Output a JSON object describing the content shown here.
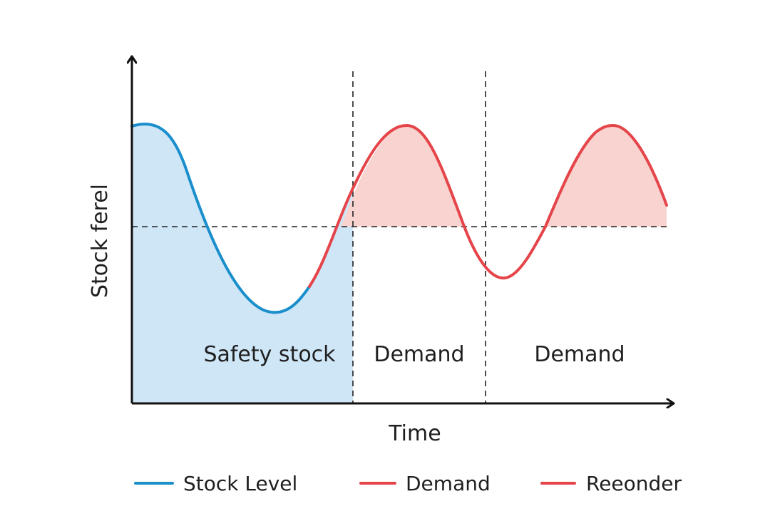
{
  "diagram": {
    "axes": {
      "x_label": "Time",
      "y_label": "Stock ferel"
    },
    "regions": [
      {
        "label": "Safety stock"
      },
      {
        "label": "Demand"
      },
      {
        "label": "Demand"
      }
    ],
    "legend": [
      {
        "label": "Stock Level",
        "color": "#1a8fcc"
      },
      {
        "label": "Demand",
        "color": "#e5454a"
      },
      {
        "label": "Reeonder",
        "color": "#e5454a"
      }
    ],
    "colors": {
      "stock_line": "#1a8fcc",
      "stock_fill": "#cfe6f7",
      "demand_line": "#e5454a",
      "demand_fill": "#f8d3cf",
      "axis": "#111111",
      "dashed": "#222222"
    }
  }
}
